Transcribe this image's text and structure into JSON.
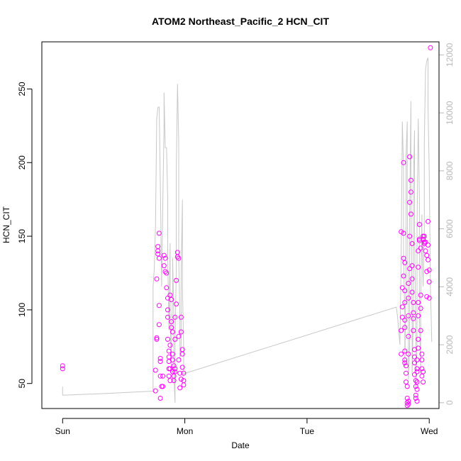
{
  "chart_data": {
    "type": "scatter",
    "title": "ATOM2 Northeast_Pacific_2 HCN_CIT",
    "xlabel": "Date",
    "ylabel": "HCN_CIT",
    "x_unit": "days",
    "xlim": [
      -0.17,
      3.08
    ],
    "ylim": [
      33,
      282
    ],
    "y2lim": [
      -200,
      12450
    ],
    "x_ticks": [
      {
        "value": 0,
        "label": "Sun"
      },
      {
        "value": 1,
        "label": "Mon"
      },
      {
        "value": 2,
        "label": "Tue"
      },
      {
        "value": 3,
        "label": "Wed"
      }
    ],
    "y_ticks": [
      50,
      100,
      150,
      200,
      250
    ],
    "y2_ticks": [
      0,
      2000,
      4000,
      6000,
      8000,
      10000,
      12000
    ],
    "grid": false,
    "legend": "none",
    "colors": {
      "points": "#ff00ff",
      "line": "#c8c8c8",
      "right_axis": "#b8b8b8",
      "frame": "#000000"
    },
    "series": [
      {
        "name": "HCN_CIT",
        "style": "points",
        "points": [
          [
            0.0,
            62
          ],
          [
            0.0,
            60
          ],
          [
            0.76,
            59
          ],
          [
            0.76,
            45
          ],
          [
            0.77,
            81
          ],
          [
            0.77,
            80
          ],
          [
            0.77,
            121
          ],
          [
            0.78,
            143
          ],
          [
            0.78,
            140
          ],
          [
            0.78,
            138
          ],
          [
            0.79,
            135
          ],
          [
            0.79,
            152
          ],
          [
            0.79,
            103
          ],
          [
            0.79,
            90
          ],
          [
            0.8,
            67
          ],
          [
            0.8,
            65
          ],
          [
            0.8,
            55
          ],
          [
            0.8,
            40
          ],
          [
            0.81,
            48
          ],
          [
            0.82,
            55
          ],
          [
            0.82,
            48
          ],
          [
            0.83,
            130
          ],
          [
            0.83,
            137
          ],
          [
            0.84,
            135
          ],
          [
            0.84,
            126
          ],
          [
            0.85,
            125
          ],
          [
            0.85,
            115
          ],
          [
            0.86,
            108
          ],
          [
            0.86,
            100
          ],
          [
            0.86,
            95
          ],
          [
            0.86,
            80
          ],
          [
            0.87,
            72
          ],
          [
            0.87,
            68
          ],
          [
            0.87,
            65
          ],
          [
            0.87,
            60
          ],
          [
            0.87,
            55
          ],
          [
            0.88,
            52
          ],
          [
            0.88,
            60
          ],
          [
            0.88,
            76
          ],
          [
            0.88,
            110
          ],
          [
            0.89,
            107
          ],
          [
            0.89,
            92
          ],
          [
            0.89,
            88
          ],
          [
            0.9,
            85
          ],
          [
            0.9,
            70
          ],
          [
            0.9,
            66
          ],
          [
            0.9,
            58
          ],
          [
            0.91,
            55
          ],
          [
            0.91,
            52
          ],
          [
            0.91,
            62
          ],
          [
            0.92,
            58
          ],
          [
            0.92,
            60
          ],
          [
            0.92,
            80
          ],
          [
            0.92,
            95
          ],
          [
            0.93,
            104
          ],
          [
            0.93,
            120
          ],
          [
            0.94,
            139
          ],
          [
            0.94,
            136
          ],
          [
            0.95,
            135
          ],
          [
            0.95,
            82
          ],
          [
            0.95,
            66
          ],
          [
            0.96,
            57
          ],
          [
            0.96,
            47
          ],
          [
            0.97,
            53
          ],
          [
            0.97,
            85
          ],
          [
            0.97,
            95
          ],
          [
            0.98,
            73
          ],
          [
            0.98,
            70
          ],
          [
            0.98,
            61
          ],
          [
            0.99,
            57
          ],
          [
            0.99,
            52
          ],
          [
            0.99,
            49
          ],
          [
            2.77,
            153
          ],
          [
            2.77,
            86
          ],
          [
            2.77,
            70
          ],
          [
            2.78,
            95
          ],
          [
            2.78,
            102
          ],
          [
            2.78,
            115
          ],
          [
            2.79,
            123
          ],
          [
            2.79,
            135
          ],
          [
            2.79,
            200
          ],
          [
            2.79,
            152
          ],
          [
            2.8,
            132
          ],
          [
            2.8,
            113
          ],
          [
            2.8,
            105
          ],
          [
            2.8,
            93
          ],
          [
            2.8,
            88
          ],
          [
            2.8,
            72
          ],
          [
            2.8,
            66
          ],
          [
            2.8,
            64
          ],
          [
            2.81,
            62
          ],
          [
            2.81,
            57
          ],
          [
            2.81,
            51
          ],
          [
            2.82,
            48
          ],
          [
            2.82,
            40
          ],
          [
            2.82,
            37
          ],
          [
            2.82,
            35
          ],
          [
            2.83,
            36
          ],
          [
            2.83,
            38
          ],
          [
            2.83,
            70
          ],
          [
            2.83,
            82
          ],
          [
            2.83,
            96
          ],
          [
            2.83,
            108
          ],
          [
            2.83,
            118
          ],
          [
            2.84,
            128
          ],
          [
            2.84,
            150
          ],
          [
            2.84,
            173
          ],
          [
            2.84,
            204
          ],
          [
            2.85,
            188
          ],
          [
            2.85,
            180
          ],
          [
            2.85,
            165
          ],
          [
            2.86,
            145
          ],
          [
            2.86,
            130
          ],
          [
            2.86,
            121
          ],
          [
            2.86,
            112
          ],
          [
            2.87,
            105
          ],
          [
            2.87,
            98
          ],
          [
            2.87,
            94
          ],
          [
            2.87,
            86
          ],
          [
            2.88,
            73
          ],
          [
            2.88,
            68
          ],
          [
            2.88,
            64
          ],
          [
            2.88,
            56
          ],
          [
            2.89,
            52
          ],
          [
            2.89,
            48
          ],
          [
            2.89,
            42
          ],
          [
            2.89,
            40
          ],
          [
            2.9,
            38
          ],
          [
            2.9,
            46
          ],
          [
            2.9,
            51
          ],
          [
            2.9,
            58
          ],
          [
            2.9,
            60
          ],
          [
            2.9,
            66
          ],
          [
            2.91,
            74
          ],
          [
            2.91,
            80
          ],
          [
            2.91,
            96
          ],
          [
            2.91,
            105
          ],
          [
            2.91,
            129
          ],
          [
            2.91,
            140
          ],
          [
            2.92,
            147
          ],
          [
            2.92,
            158
          ],
          [
            2.92,
            148
          ],
          [
            2.93,
            142
          ],
          [
            2.93,
            110
          ],
          [
            2.93,
            101
          ],
          [
            2.93,
            86
          ],
          [
            2.94,
            70
          ],
          [
            2.94,
            66
          ],
          [
            2.94,
            60
          ],
          [
            2.94,
            55
          ],
          [
            2.95,
            51
          ],
          [
            2.95,
            58
          ],
          [
            2.95,
            150
          ],
          [
            2.95,
            148
          ],
          [
            2.96,
            146
          ],
          [
            2.96,
            150
          ],
          [
            2.96,
            145
          ],
          [
            2.97,
            140
          ],
          [
            2.97,
            146
          ],
          [
            2.98,
            137
          ],
          [
            2.98,
            126
          ],
          [
            2.98,
            109
          ],
          [
            2.99,
            160
          ],
          [
            2.99,
            144
          ],
          [
            2.99,
            134
          ],
          [
            3.0,
            127
          ],
          [
            3.0,
            119
          ],
          [
            3.0,
            108
          ],
          [
            3.01,
            278
          ]
        ]
      },
      {
        "name": "",
        "style": "line",
        "axis": "right",
        "points": [
          [
            0.0,
            550
          ],
          [
            0.0,
            260
          ],
          [
            0.3,
            310
          ],
          [
            0.74,
            400
          ],
          [
            0.74,
            4000
          ],
          [
            0.75,
            4600
          ],
          [
            0.76,
            6000
          ],
          [
            0.77,
            9800
          ],
          [
            0.78,
            10200
          ],
          [
            0.79,
            10200
          ],
          [
            0.8,
            7500
          ],
          [
            0.81,
            4000
          ],
          [
            0.82,
            7000
          ],
          [
            0.83,
            9500
          ],
          [
            0.83,
            10700
          ],
          [
            0.84,
            8800
          ],
          [
            0.85,
            8800
          ],
          [
            0.86,
            7000
          ],
          [
            0.86,
            5000
          ],
          [
            0.87,
            2500
          ],
          [
            0.88,
            5500
          ],
          [
            0.88,
            3000
          ],
          [
            0.89,
            1000
          ],
          [
            0.89,
            2000
          ],
          [
            0.9,
            4000
          ],
          [
            0.9,
            5000
          ],
          [
            0.91,
            3000
          ],
          [
            0.91,
            1000
          ],
          [
            0.92,
            0
          ],
          [
            0.92,
            2000
          ],
          [
            0.93,
            4500
          ],
          [
            0.93,
            8000
          ],
          [
            0.94,
            11000
          ],
          [
            0.95,
            9000
          ],
          [
            0.95,
            5000
          ],
          [
            0.96,
            3000
          ],
          [
            0.96,
            1500
          ],
          [
            0.97,
            2000
          ],
          [
            0.97,
            4500
          ],
          [
            0.98,
            7000
          ],
          [
            0.98,
            4000
          ],
          [
            0.99,
            2000
          ],
          [
            0.99,
            900
          ],
          [
            0.99,
            1000
          ],
          [
            2.73,
            3300
          ],
          [
            2.74,
            3000
          ],
          [
            2.76,
            2000
          ],
          [
            2.77,
            5000
          ],
          [
            2.78,
            9700
          ],
          [
            2.79,
            8000
          ],
          [
            2.79,
            5000
          ],
          [
            2.8,
            3000
          ],
          [
            2.8,
            1200
          ],
          [
            2.81,
            4500
          ],
          [
            2.81,
            8500
          ],
          [
            2.82,
            9700
          ],
          [
            2.82,
            7000
          ],
          [
            2.83,
            3000
          ],
          [
            2.83,
            800
          ],
          [
            2.84,
            2000
          ],
          [
            2.84,
            6500
          ],
          [
            2.85,
            10400
          ],
          [
            2.85,
            7000
          ],
          [
            2.86,
            3000
          ],
          [
            2.86,
            1000
          ],
          [
            2.87,
            3000
          ],
          [
            2.87,
            7500
          ],
          [
            2.88,
            9400
          ],
          [
            2.88,
            6000
          ],
          [
            2.89,
            2500
          ],
          [
            2.89,
            500
          ],
          [
            2.9,
            2000
          ],
          [
            2.9,
            6000
          ],
          [
            2.91,
            9800
          ],
          [
            2.92,
            7000
          ],
          [
            2.92,
            3000
          ],
          [
            2.93,
            1000
          ],
          [
            2.93,
            3500
          ],
          [
            2.94,
            6500
          ],
          [
            2.94,
            5500
          ],
          [
            2.95,
            4000
          ],
          [
            2.96,
            6000
          ],
          [
            2.96,
            9000
          ],
          [
            2.97,
            11500
          ],
          [
            2.98,
            11800
          ],
          [
            2.99,
            11900
          ],
          [
            2.99,
            11000
          ],
          [
            2.99,
            10200
          ],
          [
            3.0,
            8000
          ],
          [
            3.01,
            4000
          ],
          [
            3.02,
            2200
          ],
          [
            3.02,
            2100
          ]
        ]
      }
    ]
  }
}
